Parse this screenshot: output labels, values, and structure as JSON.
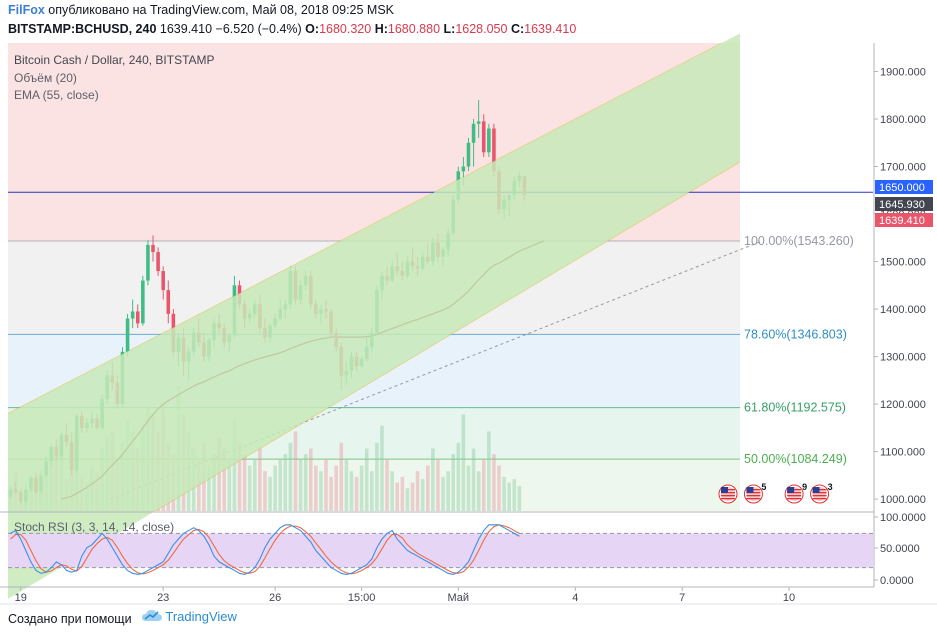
{
  "header": {
    "brand": "FilFox",
    "published": "опубликовано на TradingView.com, Май 08, 2018 09:25 MSK",
    "symbol": "BITSTAMP:BCHUSD, 240",
    "last": "1639.410",
    "change": "−6.520 (−0.4%)",
    "o_label": "O:",
    "o": "1680.320",
    "h_label": "H:",
    "h": "1680.880",
    "l_label": "L:",
    "l": "1628.050",
    "c_label": "C:",
    "c": "1639.410"
  },
  "legend": {
    "title": "Bitcoin Cash / Dollar, 240, BITSTAMP",
    "volume": "Объём (20)",
    "ema": "EMA (55, close)",
    "stoch": "Stoch RSI (3, 3, 14, 14, close)"
  },
  "footer": {
    "made_with": "Создано при помощи",
    "logo_text": "TradingView"
  },
  "colors": {
    "up": "#3fbd84",
    "down": "#e9566b",
    "ema": "#8b1a1a",
    "stoch_k": "#3d8fe8",
    "stoch_d": "#f06a42"
  },
  "chart_data": {
    "type": "candlestick",
    "title": "Bitcoin Cash / Dollar, 240, BITSTAMP",
    "y_ticks": [
      "1900.000",
      "1800.000",
      "1700.000",
      "1600.000",
      "1500.000",
      "1400.000",
      "1300.000",
      "1200.000",
      "1100.000",
      "1000.000"
    ],
    "y_tick_values": [
      1900,
      1800,
      1700,
      1600,
      1500,
      1400,
      1300,
      1200,
      1100,
      1000
    ],
    "ylim": [
      975,
      1960
    ],
    "x_labels": [
      {
        "i": 2,
        "label": "19"
      },
      {
        "i": 30,
        "label": "23"
      },
      {
        "i": 52,
        "label": "26"
      },
      {
        "i": 69,
        "label": "15:00"
      },
      {
        "i": 88,
        "label": "Май"
      },
      {
        "i": 111,
        "label": "4"
      },
      {
        "i": 132,
        "label": "7"
      },
      {
        "i": 153,
        "label": "10"
      }
    ],
    "n_slots": 170,
    "candles": [
      [
        1005,
        1028,
        1000,
        1020
      ],
      [
        1020,
        1035,
        1010,
        1015
      ],
      [
        1015,
        1022,
        990,
        995
      ],
      [
        995,
        1030,
        985,
        1020
      ],
      [
        1020,
        1050,
        1015,
        1045
      ],
      [
        1045,
        1055,
        1010,
        1015
      ],
      [
        1015,
        1060,
        1010,
        1050
      ],
      [
        1050,
        1090,
        1045,
        1080
      ],
      [
        1080,
        1115,
        1070,
        1110
      ],
      [
        1110,
        1125,
        1080,
        1090
      ],
      [
        1090,
        1140,
        1085,
        1135
      ],
      [
        1135,
        1160,
        1110,
        1120
      ],
      [
        1120,
        1140,
        1050,
        1060
      ],
      [
        1060,
        1180,
        1055,
        1175
      ],
      [
        1175,
        1185,
        1140,
        1150
      ],
      [
        1150,
        1170,
        1140,
        1160
      ],
      [
        1160,
        1185,
        1150,
        1170
      ],
      [
        1170,
        1180,
        1145,
        1150
      ],
      [
        1150,
        1220,
        1145,
        1210
      ],
      [
        1210,
        1270,
        1200,
        1260
      ],
      [
        1260,
        1290,
        1230,
        1245
      ],
      [
        1245,
        1260,
        1190,
        1200
      ],
      [
        1200,
        1320,
        1195,
        1310
      ],
      [
        1310,
        1390,
        1300,
        1380
      ],
      [
        1380,
        1420,
        1360,
        1395
      ],
      [
        1395,
        1410,
        1360,
        1370
      ],
      [
        1370,
        1470,
        1365,
        1460
      ],
      [
        1460,
        1545,
        1450,
        1535
      ],
      [
        1535,
        1555,
        1500,
        1520
      ],
      [
        1520,
        1530,
        1470,
        1480
      ],
      [
        1480,
        1490,
        1420,
        1440
      ],
      [
        1440,
        1460,
        1370,
        1390
      ],
      [
        1390,
        1400,
        1300,
        1310
      ],
      [
        1310,
        1350,
        1280,
        1340
      ],
      [
        1340,
        1360,
        1260,
        1290
      ],
      [
        1290,
        1320,
        1250,
        1310
      ],
      [
        1310,
        1360,
        1300,
        1350
      ],
      [
        1350,
        1380,
        1320,
        1330
      ],
      [
        1330,
        1350,
        1290,
        1300
      ],
      [
        1300,
        1340,
        1290,
        1335
      ],
      [
        1335,
        1380,
        1320,
        1370
      ],
      [
        1370,
        1390,
        1350,
        1360
      ],
      [
        1360,
        1370,
        1320,
        1330
      ],
      [
        1330,
        1350,
        1310,
        1345
      ],
      [
        1345,
        1470,
        1340,
        1450
      ],
      [
        1450,
        1460,
        1400,
        1410
      ],
      [
        1410,
        1420,
        1360,
        1380
      ],
      [
        1380,
        1400,
        1370,
        1390
      ],
      [
        1390,
        1420,
        1380,
        1410
      ],
      [
        1410,
        1430,
        1350,
        1360
      ],
      [
        1360,
        1380,
        1330,
        1340
      ],
      [
        1340,
        1370,
        1330,
        1365
      ],
      [
        1365,
        1390,
        1360,
        1380
      ],
      [
        1380,
        1420,
        1375,
        1400
      ],
      [
        1400,
        1420,
        1380,
        1410
      ],
      [
        1410,
        1490,
        1400,
        1480
      ],
      [
        1480,
        1490,
        1410,
        1420
      ],
      [
        1420,
        1460,
        1410,
        1450
      ],
      [
        1450,
        1480,
        1440,
        1470
      ],
      [
        1470,
        1480,
        1400,
        1410
      ],
      [
        1410,
        1420,
        1380,
        1390
      ],
      [
        1390,
        1410,
        1370,
        1400
      ],
      [
        1400,
        1420,
        1380,
        1395
      ],
      [
        1395,
        1400,
        1340,
        1350
      ],
      [
        1350,
        1360,
        1310,
        1320
      ],
      [
        1320,
        1330,
        1230,
        1260
      ],
      [
        1260,
        1290,
        1240,
        1270
      ],
      [
        1270,
        1310,
        1255,
        1300
      ],
      [
        1300,
        1310,
        1270,
        1280
      ],
      [
        1280,
        1300,
        1275,
        1295
      ],
      [
        1295,
        1340,
        1290,
        1320
      ],
      [
        1320,
        1360,
        1310,
        1350
      ],
      [
        1350,
        1450,
        1345,
        1440
      ],
      [
        1440,
        1480,
        1420,
        1470
      ],
      [
        1470,
        1490,
        1450,
        1460
      ],
      [
        1460,
        1500,
        1455,
        1490
      ],
      [
        1490,
        1520,
        1470,
        1480
      ],
      [
        1480,
        1500,
        1460,
        1470
      ],
      [
        1470,
        1510,
        1465,
        1500
      ],
      [
        1500,
        1530,
        1480,
        1490
      ],
      [
        1490,
        1510,
        1470,
        1485
      ],
      [
        1485,
        1520,
        1480,
        1510
      ],
      [
        1510,
        1540,
        1495,
        1500
      ],
      [
        1500,
        1550,
        1490,
        1540
      ],
      [
        1540,
        1560,
        1500,
        1510
      ],
      [
        1510,
        1530,
        1490,
        1525
      ],
      [
        1525,
        1570,
        1510,
        1560
      ],
      [
        1560,
        1640,
        1555,
        1630
      ],
      [
        1630,
        1700,
        1620,
        1690
      ],
      [
        1690,
        1720,
        1660,
        1700
      ],
      [
        1700,
        1760,
        1690,
        1750
      ],
      [
        1750,
        1800,
        1700,
        1790
      ],
      [
        1790,
        1840,
        1760,
        1795
      ],
      [
        1795,
        1810,
        1720,
        1730
      ],
      [
        1730,
        1790,
        1720,
        1780
      ],
      [
        1780,
        1790,
        1680,
        1690
      ],
      [
        1690,
        1700,
        1600,
        1610
      ],
      [
        1610,
        1640,
        1590,
        1630
      ],
      [
        1630,
        1650,
        1595,
        1640
      ],
      [
        1640,
        1680,
        1630,
        1670
      ],
      [
        1670,
        1690,
        1655,
        1680
      ],
      [
        1680,
        1681,
        1628,
        1639
      ]
    ],
    "volume": [
      20,
      35,
      15,
      18,
      25,
      30,
      22,
      40,
      45,
      50,
      55,
      28,
      35,
      60,
      30,
      25,
      40,
      35,
      55,
      65,
      70,
      45,
      60,
      80,
      70,
      55,
      75,
      90,
      85,
      70,
      95,
      60,
      50,
      110,
      85,
      70,
      55,
      45,
      60,
      40,
      50,
      65,
      55,
      45,
      80,
      60,
      50,
      40,
      45,
      55,
      35,
      30,
      40,
      45,
      50,
      60,
      70,
      45,
      50,
      55,
      40,
      35,
      45,
      30,
      40,
      60,
      45,
      35,
      30,
      40,
      55,
      35,
      60,
      75,
      45,
      35,
      25,
      30,
      20,
      25,
      35,
      28,
      40,
      55,
      45,
      30,
      35,
      50,
      60,
      85,
      40,
      55,
      35,
      45,
      70,
      50,
      40,
      30,
      25,
      28,
      22
    ],
    "ema": [
      null,
      null,
      null,
      null,
      null,
      null,
      null,
      null,
      null,
      null,
      1000,
      1003,
      1006,
      1012,
      1018,
      1025,
      1032,
      1040,
      1048,
      1060,
      1072,
      1082,
      1094,
      1108,
      1122,
      1135,
      1150,
      1165,
      1178,
      1190,
      1200,
      1207,
      1213,
      1220,
      1226,
      1232,
      1238,
      1243,
      1247,
      1252,
      1257,
      1262,
      1266,
      1270,
      1276,
      1281,
      1285,
      1289,
      1293,
      1296,
      1299,
      1302,
      1305,
      1308,
      1312,
      1317,
      1321,
      1325,
      1329,
      1332,
      1335,
      1337,
      1339,
      1341,
      1342,
      1341,
      1341,
      1341,
      1341,
      1341,
      1342,
      1343,
      1347,
      1351,
      1355,
      1359,
      1363,
      1367,
      1371,
      1375,
      1378,
      1382,
      1386,
      1390,
      1394,
      1398,
      1403,
      1410,
      1419,
      1428,
      1438,
      1450,
      1462,
      1472,
      1484,
      1492,
      1497,
      1503,
      1509,
      1516,
      1522
    ],
    "stoch_k": [
      80,
      85,
      70,
      50,
      30,
      15,
      10,
      12,
      20,
      30,
      25,
      15,
      12,
      15,
      40,
      55,
      60,
      70,
      80,
      70,
      55,
      40,
      25,
      15,
      10,
      8,
      10,
      15,
      20,
      25,
      30,
      45,
      60,
      70,
      80,
      85,
      90,
      85,
      75,
      60,
      40,
      30,
      25,
      20,
      15,
      10,
      8,
      12,
      20,
      35,
      55,
      70,
      80,
      90,
      95,
      95,
      90,
      85,
      75,
      65,
      50,
      40,
      30,
      20,
      15,
      10,
      8,
      10,
      15,
      20,
      25,
      35,
      55,
      70,
      80,
      85,
      70,
      60,
      50,
      45,
      40,
      35,
      30,
      25,
      20,
      15,
      10,
      8,
      12,
      20,
      30,
      50,
      70,
      85,
      95,
      95,
      95,
      90,
      85,
      80,
      75
    ],
    "stoch_d": [
      70,
      78,
      78,
      68,
      50,
      32,
      18,
      12,
      14,
      20,
      25,
      23,
      17,
      14,
      22,
      37,
      52,
      62,
      70,
      73,
      68,
      55,
      40,
      27,
      17,
      11,
      9,
      11,
      15,
      20,
      25,
      33,
      45,
      58,
      70,
      78,
      85,
      87,
      83,
      73,
      58,
      43,
      32,
      25,
      20,
      15,
      11,
      10,
      13,
      22,
      37,
      53,
      68,
      80,
      88,
      93,
      93,
      90,
      83,
      75,
      63,
      52,
      40,
      30,
      22,
      15,
      11,
      9,
      11,
      15,
      20,
      27,
      38,
      53,
      68,
      78,
      78,
      72,
      60,
      52,
      45,
      40,
      35,
      30,
      25,
      20,
      15,
      11,
      10,
      13,
      21,
      33,
      50,
      68,
      83,
      92,
      95,
      93,
      90,
      85,
      80
    ],
    "stoch_ticks": [
      "100.0000",
      "50.0000",
      "0.0000"
    ],
    "fib_levels": [
      {
        "label": "100.00%(1543.260)",
        "value": 1543.26,
        "color": "#9598a1"
      },
      {
        "label": "78.60%(1346.803)",
        "value": 1346.803,
        "color": "#2f8fc4"
      },
      {
        "label": "61.80%(1192.575)",
        "value": 1192.575,
        "color": "#35a06a"
      },
      {
        "label": "50.00%(1084.249)",
        "value": 1084.249,
        "color": "#4caf50"
      }
    ],
    "price_tags": [
      {
        "value": 1650.0,
        "label": "1650.000",
        "bg": "#2962ff"
      },
      {
        "value": 1645.93,
        "label": "1645.930",
        "bg": "#434651"
      },
      {
        "value": 1639.41,
        "label": "1639.410",
        "bg": "#e9566b"
      }
    ],
    "horizontal_line": 1645.93,
    "event_flags": [
      {
        "i": 141,
        "badge": ""
      },
      {
        "i": 146,
        "badge": "5"
      },
      {
        "i": 154,
        "badge": "9"
      },
      {
        "i": 159,
        "badge": "3"
      }
    ]
  }
}
